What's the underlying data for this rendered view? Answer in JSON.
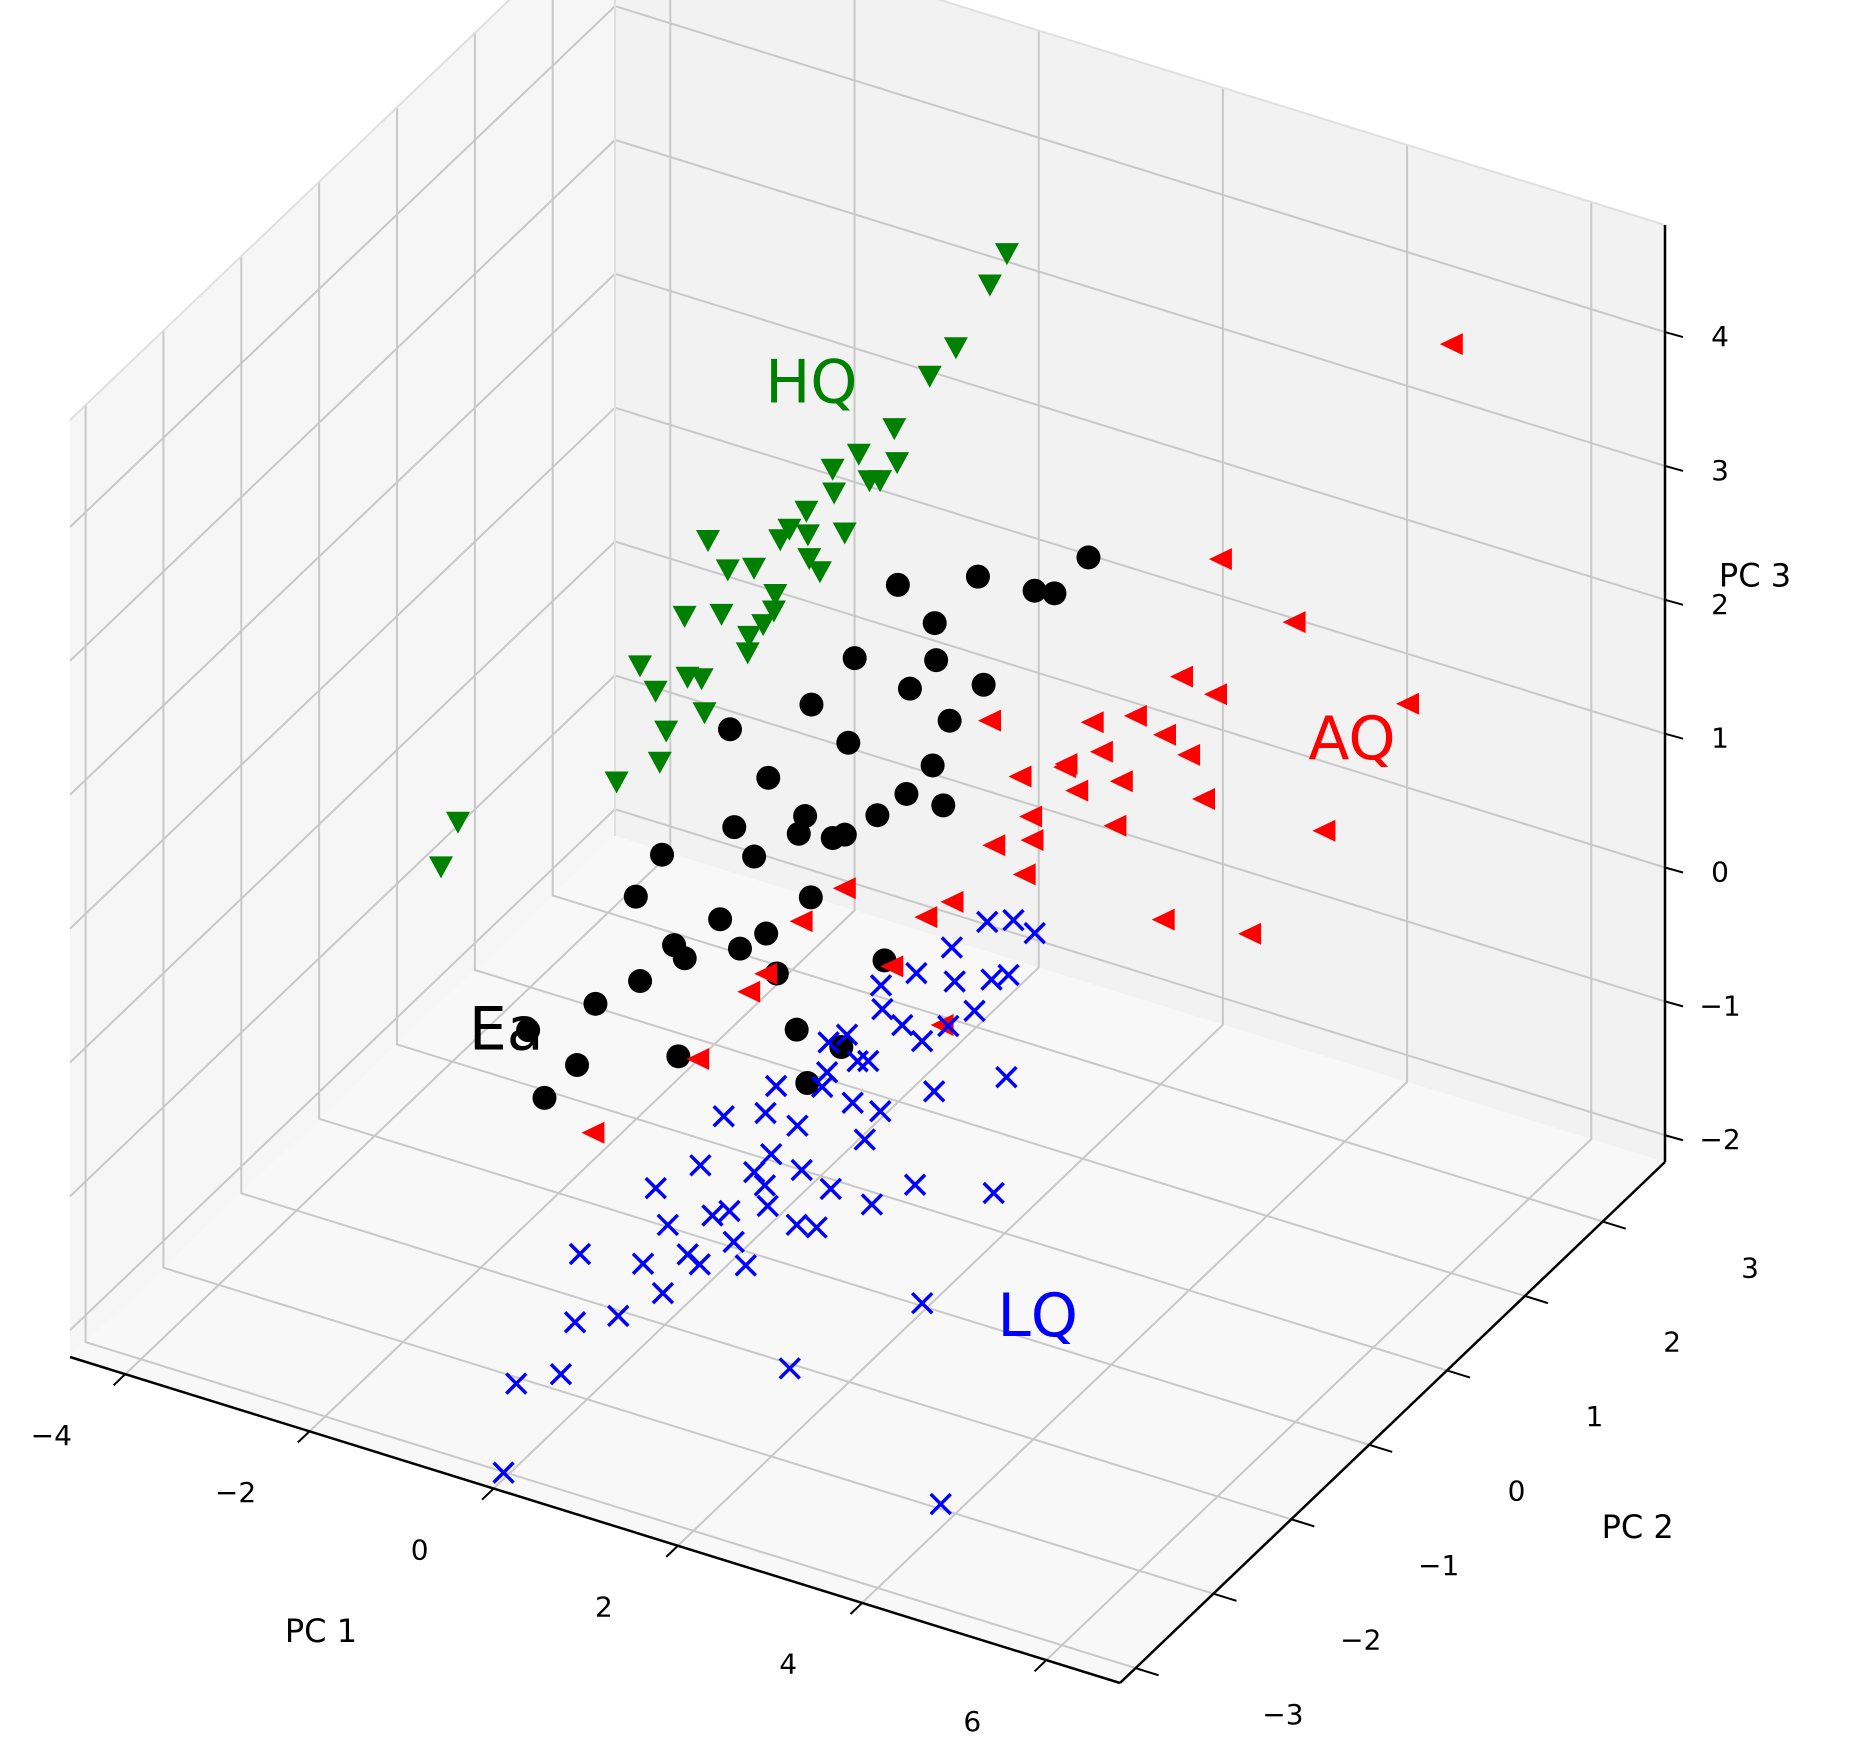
{
  "chart_data": {
    "type": "scatter",
    "projection": "3d",
    "grid": true,
    "xlabel": "PC 1",
    "ylabel": "PC 2",
    "zlabel": "PC 3",
    "xlim": [
      -4.6,
      6.8
    ],
    "ylim": [
      -3.2,
      3.8
    ],
    "zlim": [
      -2.2,
      4.8
    ],
    "x_ticks": [
      -4,
      -2,
      0,
      2,
      4,
      6
    ],
    "y_ticks": [
      -3,
      -2,
      -1,
      0,
      1,
      2,
      3
    ],
    "z_ticks": [
      -2,
      -1,
      0,
      1,
      2,
      3,
      4
    ],
    "x_tick_labels": [
      "−4",
      "−2",
      "0",
      "2",
      "4",
      "6"
    ],
    "y_tick_labels": [
      "−3",
      "−2",
      "−1",
      "0",
      "1",
      "2",
      "3"
    ],
    "z_tick_labels": [
      "−2",
      "−1",
      "0",
      "1",
      "2",
      "3",
      "4"
    ],
    "series": [
      {
        "name": "HQ",
        "color": "#008000",
        "marker": "triangle-down",
        "points": [
          [
            -2.3,
            1.6,
            0.6
          ],
          [
            -2.1,
            1.5,
            0.4
          ],
          [
            -2.3,
            1.4,
            0.9
          ],
          [
            -1.8,
            1.6,
            0.8
          ],
          [
            -1.6,
            1.4,
            0.7
          ],
          [
            -1.9,
            1.5,
            1.3
          ],
          [
            -1.6,
            1.7,
            1.6
          ],
          [
            -1.7,
            1.3,
            1.0
          ],
          [
            -1.3,
            1.8,
            1.2
          ],
          [
            -1.5,
            1.5,
            1.4
          ],
          [
            -1.2,
            1.9,
            1.8
          ],
          [
            -1.4,
            1.8,
            1.6
          ],
          [
            -1.1,
            1.7,
            1.4
          ],
          [
            -1.0,
            2.0,
            2.0
          ],
          [
            -0.8,
            2.1,
            2.3
          ],
          [
            -0.9,
            1.9,
            1.9
          ],
          [
            -0.6,
            2.2,
            2.4
          ],
          [
            -0.7,
            2.0,
            2.2
          ],
          [
            -0.4,
            2.1,
            2.3
          ],
          [
            -0.5,
            1.9,
            2.0
          ],
          [
            -0.3,
            2.3,
            2.6
          ],
          [
            -0.2,
            2.0,
            2.4
          ],
          [
            0.0,
            2.4,
            3.0
          ],
          [
            -1.0,
            1.6,
            1.6
          ],
          [
            -1.3,
            1.6,
            1.1
          ],
          [
            -2.0,
            1.3,
            0.3
          ],
          [
            -3.6,
            0.6,
            -0.1
          ],
          [
            -3.7,
            0.5,
            -0.4
          ],
          [
            -2.3,
            1.1,
            0.2
          ],
          [
            -1.2,
            1.5,
            1.3
          ],
          [
            -0.6,
            1.7,
            1.8
          ],
          [
            -0.1,
            2.1,
            2.5
          ],
          [
            0.2,
            2.5,
            3.2
          ],
          [
            0.4,
            2.7,
            3.6
          ],
          [
            0.5,
            2.8,
            3.8
          ],
          [
            -1.9,
            1.8,
            1.7
          ],
          [
            -1.1,
            1.9,
            1.9
          ],
          [
            -0.8,
            1.8,
            1.8
          ]
        ]
      },
      {
        "name": "Ea",
        "color": "#000000",
        "marker": "circle",
        "points": [
          [
            -1.6,
            0.0,
            -0.7
          ],
          [
            -1.8,
            0.0,
            -1.2
          ],
          [
            -1.0,
            0.3,
            -0.3
          ],
          [
            -0.5,
            0.3,
            0.0
          ],
          [
            -0.8,
            0.2,
            -0.3
          ],
          [
            0.0,
            0.3,
            0.0
          ],
          [
            0.2,
            0.2,
            -0.2
          ],
          [
            0.5,
            0.1,
            -0.5
          ],
          [
            0.7,
            0.0,
            -0.8
          ],
          [
            0.9,
            0.2,
            -0.6
          ],
          [
            -0.3,
            0.5,
            0.4
          ],
          [
            0.1,
            0.6,
            0.6
          ],
          [
            0.4,
            0.4,
            0.3
          ],
          [
            0.6,
            0.6,
            0.7
          ],
          [
            -0.6,
            0.6,
            0.5
          ],
          [
            -1.3,
            0.5,
            0.2
          ],
          [
            -1.5,
            0.4,
            -0.1
          ],
          [
            1.1,
            0.8,
            1.0
          ],
          [
            1.4,
            1.0,
            1.5
          ],
          [
            1.6,
            1.2,
            1.7
          ],
          [
            1.3,
            0.9,
            1.2
          ],
          [
            1.5,
            0.8,
            1.0
          ],
          [
            2.2,
            1.4,
            2.4
          ],
          [
            2.4,
            1.6,
            2.6
          ],
          [
            1.2,
            1.6,
            2.2
          ],
          [
            0.8,
            1.2,
            1.5
          ],
          [
            0.3,
            1.0,
            1.1
          ],
          [
            -0.1,
            1.0,
            1.3
          ],
          [
            -0.4,
            0.8,
            0.8
          ],
          [
            0.0,
            0.8,
            0.6
          ],
          [
            0.3,
            0.8,
            0.5
          ],
          [
            0.7,
            0.9,
            0.7
          ],
          [
            -0.9,
            0.9,
            1.0
          ],
          [
            -0.2,
            0.2,
            -0.1
          ],
          [
            0.2,
            1.2,
            1.6
          ],
          [
            1.0,
            1.3,
            1.7
          ],
          [
            -1.2,
            0.1,
            -0.5
          ],
          [
            0.5,
            1.4,
            2.1
          ],
          [
            0.9,
            1.4,
            1.9
          ],
          [
            1.9,
            1.5,
            2.3
          ],
          [
            -2.5,
            0.2,
            -1.2
          ],
          [
            -0.7,
            0.0,
            -0.9
          ],
          [
            -1.9,
            -0.3,
            -1.3
          ],
          [
            1.2,
            0.4,
            0.0
          ]
        ]
      },
      {
        "name": "AQ",
        "color": "#ff0000",
        "marker": "triangle-left",
        "points": [
          [
            5.5,
            2.6,
            4.3
          ],
          [
            4.5,
            0.6,
            1.8
          ],
          [
            4.4,
            0.2,
            1.1
          ],
          [
            4.3,
            2.0,
            2.3
          ],
          [
            4.0,
            1.0,
            1.8
          ],
          [
            3.5,
            1.5,
            2.0
          ],
          [
            5.3,
            1.2,
            1.4
          ],
          [
            5.0,
            0.6,
            0.9
          ],
          [
            3.7,
            1.7,
            1.8
          ],
          [
            3.4,
            1.4,
            1.6
          ],
          [
            3.0,
            1.5,
            1.6
          ],
          [
            2.8,
            1.3,
            1.4
          ],
          [
            3.1,
            1.2,
            1.3
          ],
          [
            3.2,
            1.0,
            1.1
          ],
          [
            2.7,
            1.1,
            1.2
          ],
          [
            2.5,
            1.2,
            1.3
          ],
          [
            2.7,
            1.3,
            1.6
          ],
          [
            2.3,
            1.0,
            0.8
          ],
          [
            2.4,
            1.3,
            1.2
          ],
          [
            2.2,
            1.1,
            0.9
          ],
          [
            2.0,
            1.2,
            1.1
          ],
          [
            2.3,
            0.9,
            0.6
          ],
          [
            1.8,
            1.1,
            0.6
          ],
          [
            1.5,
            1.4,
            1.3
          ],
          [
            1.6,
            0.8,
            0.3
          ],
          [
            1.2,
            0.5,
            -0.1
          ],
          [
            1.4,
            0.7,
            0.2
          ],
          [
            2.0,
            0.2,
            -0.2
          ],
          [
            0.6,
            0.6,
            0.3
          ],
          [
            0.3,
            0.4,
            0.1
          ],
          [
            0.0,
            0.3,
            -0.3
          ],
          [
            -0.1,
            0.2,
            -0.4
          ],
          [
            -0.4,
            -0.1,
            -0.8
          ],
          [
            -1.2,
            -0.5,
            -1.3
          ],
          [
            5.7,
            1.8,
            2.1
          ],
          [
            3.5,
            2.0,
            2.6
          ]
        ]
      },
      {
        "name": "LQ",
        "color": "#0000ff",
        "marker": "x",
        "points": [
          [
            2.5,
            -0.5,
            -0.2
          ],
          [
            3.2,
            -0.4,
            0.0
          ],
          [
            3.0,
            0.2,
            0.7
          ],
          [
            2.8,
            0.1,
            0.4
          ],
          [
            3.4,
            -0.8,
            -0.6
          ],
          [
            1.1,
            -0.6,
            -0.7
          ],
          [
            1.0,
            -0.9,
            -1.0
          ],
          [
            0.7,
            -1.0,
            -1.2
          ],
          [
            0.8,
            -0.8,
            -1.0
          ],
          [
            0.9,
            -0.7,
            -0.9
          ],
          [
            1.2,
            -0.4,
            -0.5
          ],
          [
            1.3,
            -0.2,
            -0.2
          ],
          [
            1.5,
            -0.3,
            -0.3
          ],
          [
            1.6,
            -0.1,
            0.0
          ],
          [
            1.7,
            -0.4,
            -0.2
          ],
          [
            1.9,
            -0.2,
            0.0
          ],
          [
            2.0,
            -0.6,
            -0.4
          ],
          [
            2.2,
            -0.3,
            0.0
          ],
          [
            2.3,
            0.0,
            0.3
          ],
          [
            2.4,
            -0.2,
            0.1
          ],
          [
            2.6,
            -0.1,
            0.2
          ],
          [
            2.7,
            0.0,
            0.4
          ],
          [
            1.4,
            -0.9,
            -0.8
          ],
          [
            1.2,
            -1.1,
            -1.0
          ],
          [
            1.0,
            -1.3,
            -1.2
          ],
          [
            0.8,
            -1.5,
            -1.3
          ],
          [
            0.6,
            -1.1,
            -1.2
          ],
          [
            0.5,
            -1.3,
            -1.4
          ],
          [
            0.4,
            -1.5,
            -1.6
          ],
          [
            0.3,
            -0.9,
            -1.0
          ],
          [
            0.2,
            -1.2,
            -1.3
          ],
          [
            0.1,
            -1.4,
            -1.5
          ],
          [
            0.0,
            -1.6,
            -1.8
          ],
          [
            -0.1,
            -1.0,
            -1.2
          ],
          [
            0.3,
            -0.6,
            -0.8
          ],
          [
            0.7,
            -0.4,
            -0.6
          ],
          [
            1.1,
            -0.2,
            -0.3
          ],
          [
            1.5,
            0.0,
            0.1
          ],
          [
            1.8,
            0.1,
            0.2
          ],
          [
            2.1,
            0.2,
            0.4
          ],
          [
            2.4,
            0.3,
            0.6
          ],
          [
            2.0,
            -0.8,
            -0.5
          ],
          [
            1.8,
            -1.0,
            -0.8
          ],
          [
            1.6,
            -1.2,
            -1.0
          ],
          [
            1.9,
            -1.3,
            -0.9
          ],
          [
            3.3,
            -1.6,
            -1.0
          ],
          [
            2.2,
            -2.0,
            -1.5
          ],
          [
            -0.2,
            -2.1,
            -2.0
          ],
          [
            -0.5,
            -1.5,
            -1.5
          ],
          [
            -0.3,
            -1.8,
            -1.8
          ],
          [
            -0.6,
            -2.2,
            -2.1
          ],
          [
            -0.4,
            -2.6,
            -2.5
          ],
          [
            4.6,
            -2.9,
            -1.5
          ],
          [
            1.3,
            -1.5,
            -1.2
          ],
          [
            2.8,
            -1.1,
            -0.5
          ],
          [
            1.0,
            -0.1,
            -0.6
          ],
          [
            0.5,
            -0.3,
            -0.9
          ],
          [
            2.5,
            -1.3,
            -0.6
          ],
          [
            1.7,
            -0.6,
            -0.4
          ],
          [
            2.6,
            0.4,
            0.6
          ]
        ]
      }
    ],
    "annotations": [
      {
        "text": "HQ",
        "color": "#008000",
        "x": -1.2,
        "y": 2.3,
        "z": 2.6
      },
      {
        "text": "Ea",
        "color": "#000000",
        "x": -2.4,
        "y": -0.2,
        "z": -1.1
      },
      {
        "text": "AQ",
        "color": "#ff0000",
        "x": 5.6,
        "y": 1.2,
        "z": 2.0
      },
      {
        "text": "LQ",
        "color": "#0000ff",
        "x": 4.3,
        "y": -1.3,
        "z": -1.2
      }
    ]
  }
}
